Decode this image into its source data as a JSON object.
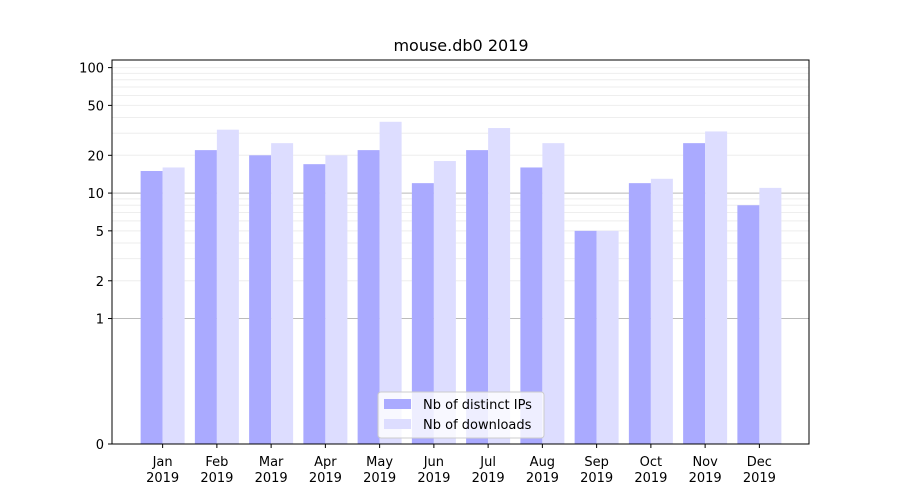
{
  "chart_data": {
    "type": "bar",
    "title": "mouse.db0 2019",
    "xlabel": "",
    "ylabel": "",
    "yscale": "symlog",
    "ylim": [
      0,
      115
    ],
    "yticks": [
      0,
      1,
      2,
      5,
      10,
      20,
      50,
      100
    ],
    "ytick_labels": [
      "0",
      "1",
      "2",
      "5",
      "10",
      "20",
      "50",
      "100"
    ],
    "categories": [
      [
        "Jan",
        "2019"
      ],
      [
        "Feb",
        "2019"
      ],
      [
        "Mar",
        "2019"
      ],
      [
        "Apr",
        "2019"
      ],
      [
        "May",
        "2019"
      ],
      [
        "Jun",
        "2019"
      ],
      [
        "Jul",
        "2019"
      ],
      [
        "Aug",
        "2019"
      ],
      [
        "Sep",
        "2019"
      ],
      [
        "Oct",
        "2019"
      ],
      [
        "Nov",
        "2019"
      ],
      [
        "Dec",
        "2019"
      ]
    ],
    "series": [
      {
        "name": "Nb of distinct IPs",
        "color": "#aaaaff",
        "values": [
          15,
          22,
          20,
          17,
          22,
          12,
          22,
          16,
          5,
          12,
          25,
          8
        ]
      },
      {
        "name": "Nb of downloads",
        "color": "#ddddff",
        "values": [
          16,
          32,
          25,
          20,
          37,
          18,
          33,
          25,
          5,
          13,
          31,
          11
        ]
      }
    ],
    "reference_lines": [
      1,
      10
    ],
    "grid": true,
    "legend_position": "bottom-center"
  }
}
